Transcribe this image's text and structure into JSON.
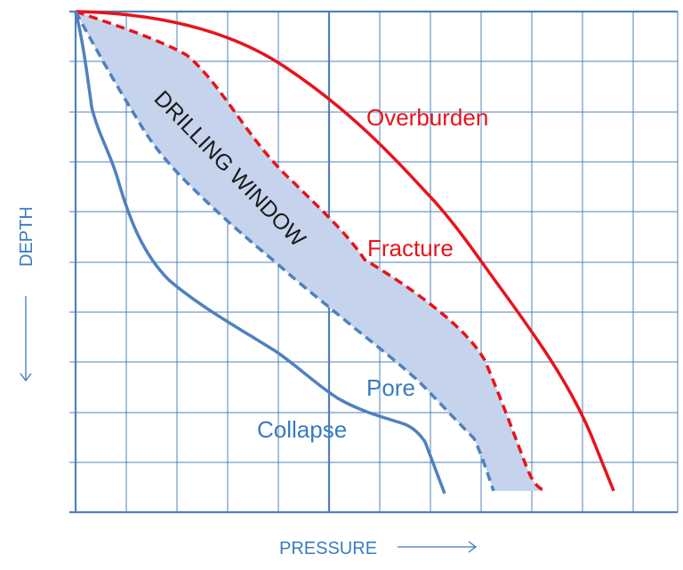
{
  "labels": {
    "overburden": "Overburden",
    "fracture": "Fracture",
    "pore": "Pore",
    "collapse": "Collapse",
    "window": "DRILLING WINDOW",
    "xaxis": "PRESSURE",
    "yaxis": "DEPTH"
  },
  "colors": {
    "grid": "#4f81bd",
    "red": "#e8131b",
    "blue": "#4f81bd",
    "fill": "#c5d4ec",
    "text_blue": "#3a7bbf",
    "text_dark": "#1a1a1a"
  },
  "icons": {
    "x_arrow": "arrow-right-icon",
    "y_arrow": "arrow-down-icon"
  }
}
